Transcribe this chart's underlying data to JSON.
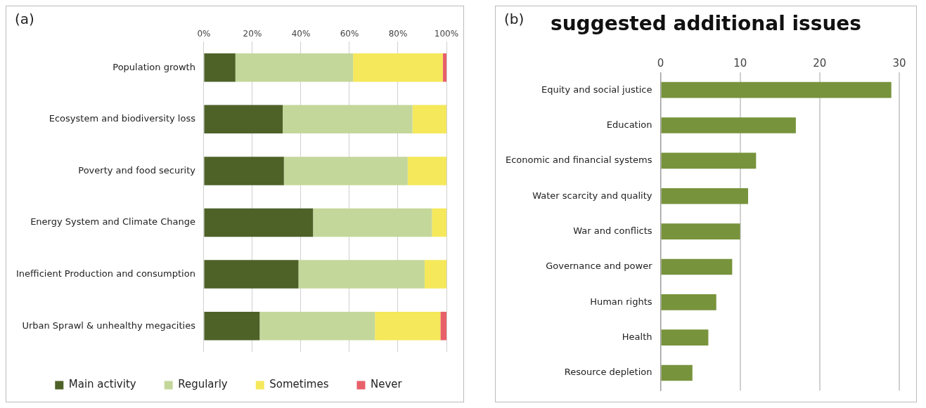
{
  "chart_data": [
    {
      "type": "bar",
      "orientation": "horizontal",
      "stacked": true,
      "annotations": [
        "(a)"
      ],
      "categories": [
        "Population growth",
        "Ecosystem and biodiversity loss",
        "Poverty and food security",
        "Energy System and Climate Change",
        "Inefficient Production and consumption",
        "Urban Sprawl & unhealthy megacities"
      ],
      "series": [
        {
          "name": "Main activity",
          "color": "#4e6228",
          "values": [
            13,
            32.5,
            33,
            45,
            39,
            23
          ]
        },
        {
          "name": "Regularly",
          "color": "#c4d79b",
          "values": [
            48.5,
            53.5,
            51,
            49,
            52,
            47.5
          ]
        },
        {
          "name": "Sometimes",
          "color": "#f5e85a",
          "values": [
            37,
            14,
            16,
            6,
            9,
            27
          ]
        },
        {
          "name": "Never",
          "color": "#e8606a",
          "values": [
            1.5,
            0,
            0,
            0,
            0,
            2.5
          ]
        }
      ],
      "xlim": [
        0,
        100
      ],
      "xticks": [
        {
          "value": 0,
          "label": "0%"
        },
        {
          "value": 20,
          "label": "20%"
        },
        {
          "value": 40,
          "label": "40%"
        },
        {
          "value": 60,
          "label": "60%"
        },
        {
          "value": 80,
          "label": "80%"
        },
        {
          "value": 100,
          "label": "100%"
        }
      ],
      "grid": "x",
      "legend": "bottom"
    },
    {
      "type": "bar",
      "orientation": "horizontal",
      "title": "suggested additional issues",
      "annotations": [
        "(b)"
      ],
      "categories": [
        "Equity and social justice",
        "Education",
        "Economic and financial systems",
        "Water scarcity and quality",
        "War and conflicts",
        "Governance and power",
        "Human rights",
        "Health",
        "Resource depletion"
      ],
      "values": [
        29,
        17,
        12,
        11,
        10,
        9,
        7,
        6,
        4
      ],
      "color": "#77933c",
      "xlim": [
        0,
        30
      ],
      "xticks": [
        0,
        10,
        20,
        30
      ],
      "grid": "x"
    }
  ]
}
